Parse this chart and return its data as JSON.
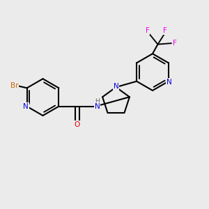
{
  "background_color": "#ebebeb",
  "figsize": [
    3.0,
    3.0
  ],
  "dpi": 100,
  "bond_color": "#000000",
  "bond_lw": 1.5,
  "atom_colors": {
    "N": "#0000dd",
    "O": "#dd0000",
    "Br": "#cc6600",
    "F": "#ee00ee",
    "C": "#000000",
    "H": "#666666"
  },
  "font_size": 7.5
}
